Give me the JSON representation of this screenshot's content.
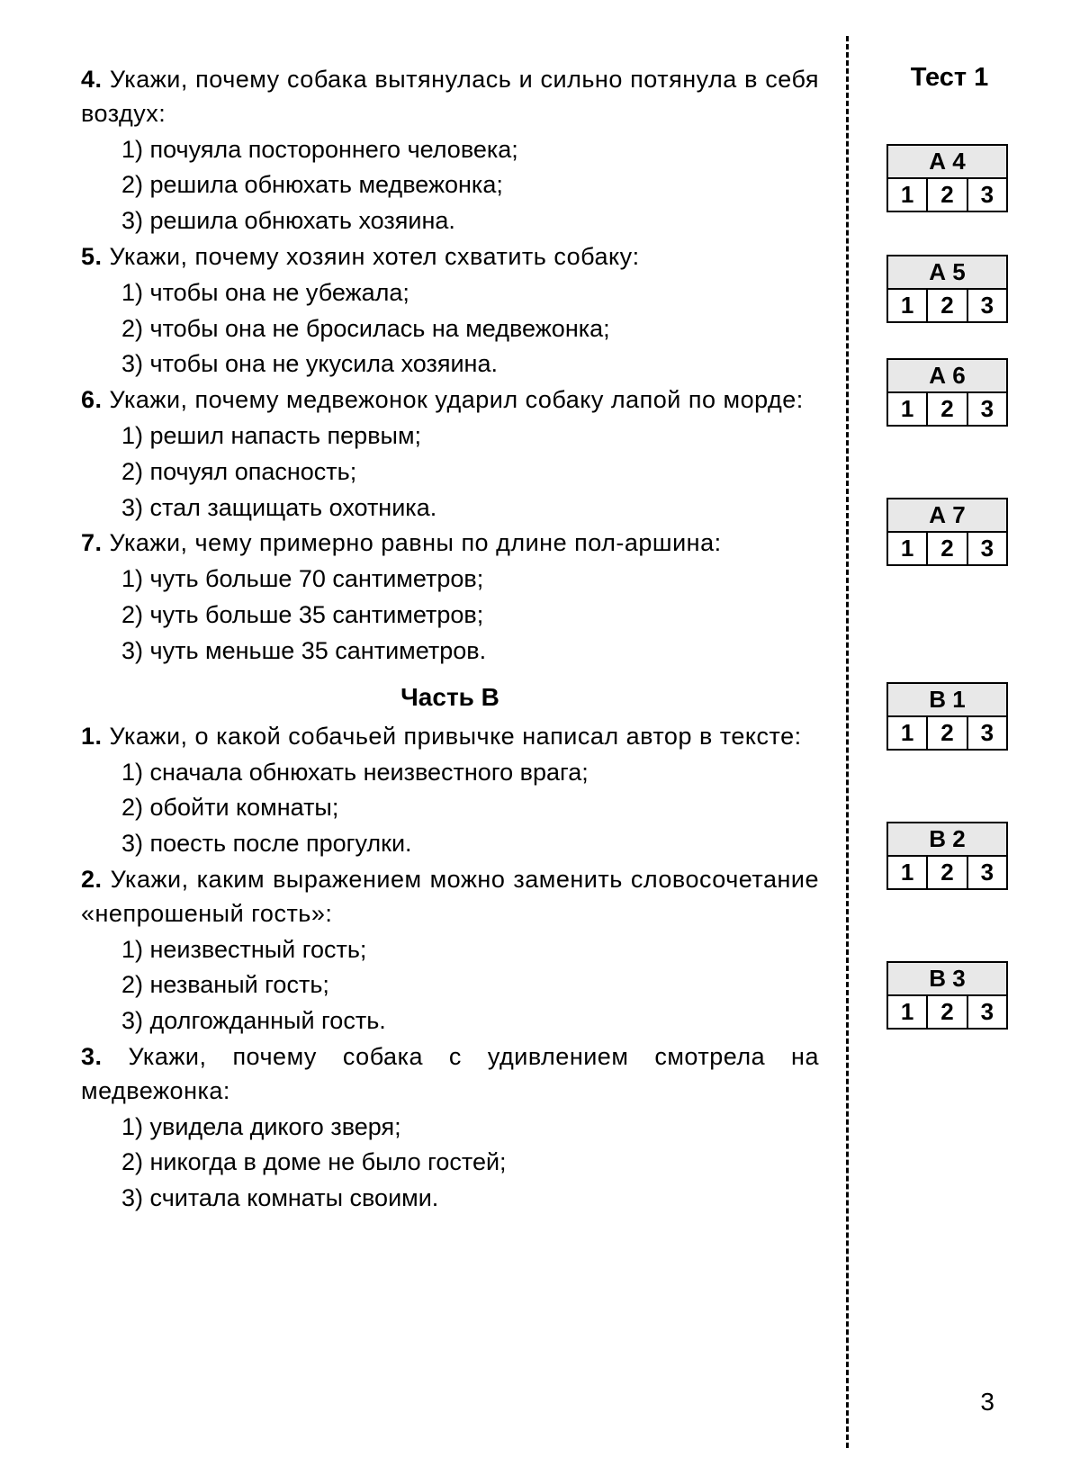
{
  "test_header": "Тест 1",
  "page_number": "3",
  "section_b_header": "Часть B",
  "answer_cells": [
    "1",
    "2",
    "3"
  ],
  "questions": [
    {
      "num": "4.",
      "text": "Укажи, почему собака вытянулась и сильно потянула в себя воздух:",
      "options": [
        "1) почуяла постороннего человека;",
        "2) решила обнюхать медвежонка;",
        "3) решила обнюхать хозяина."
      ],
      "box": "А 4"
    },
    {
      "num": "5.",
      "text": "Укажи, почему хозяин хотел схватить собаку:",
      "options": [
        "1) чтобы она не убежала;",
        "2) чтобы она не бросилась на медвежонка;",
        "3) чтобы она не укусила хозяина."
      ],
      "box": "А 5"
    },
    {
      "num": "6.",
      "text": "Укажи, почему медвежонок ударил собаку лапой по морде:",
      "options": [
        "1) решил напасть первым;",
        "2) почуял опасность;",
        "3) стал защищать охотника."
      ],
      "box": "А 6"
    },
    {
      "num": "7.",
      "text": "Укажи, чему примерно равны по длине пол-аршина:",
      "options": [
        "1) чуть больше 70 сантиметров;",
        "2) чуть больше 35 сантиметров;",
        "3) чуть меньше 35 сантиметров."
      ],
      "box": "А 7"
    }
  ],
  "questions_b": [
    {
      "num": "1.",
      "text": "Укажи, о какой собачьей привычке написал автор в тексте:",
      "options": [
        "1) сначала обнюхать неизвестного врага;",
        "2) обойти комнаты;",
        "3) поесть после прогулки."
      ],
      "box": "В 1"
    },
    {
      "num": "2.",
      "text": "Укажи, каким выражением можно заменить словосочетание «непрошеный гость»:",
      "options": [
        "1) неизвестный гость;",
        "2) незваный гость;",
        "3) долгожданный гость."
      ],
      "box": "В 2"
    },
    {
      "num": "3.",
      "text": "Укажи, почему собака с удивлением смотрела на медвежонка:",
      "options": [
        "1) увидела дикого зверя;",
        "2) никогда в доме не было гостей;",
        "3) считала комнаты своими."
      ],
      "box": "В 3"
    }
  ],
  "box_offsets": [
    42,
    165,
    280,
    435,
    640,
    795,
    950
  ]
}
